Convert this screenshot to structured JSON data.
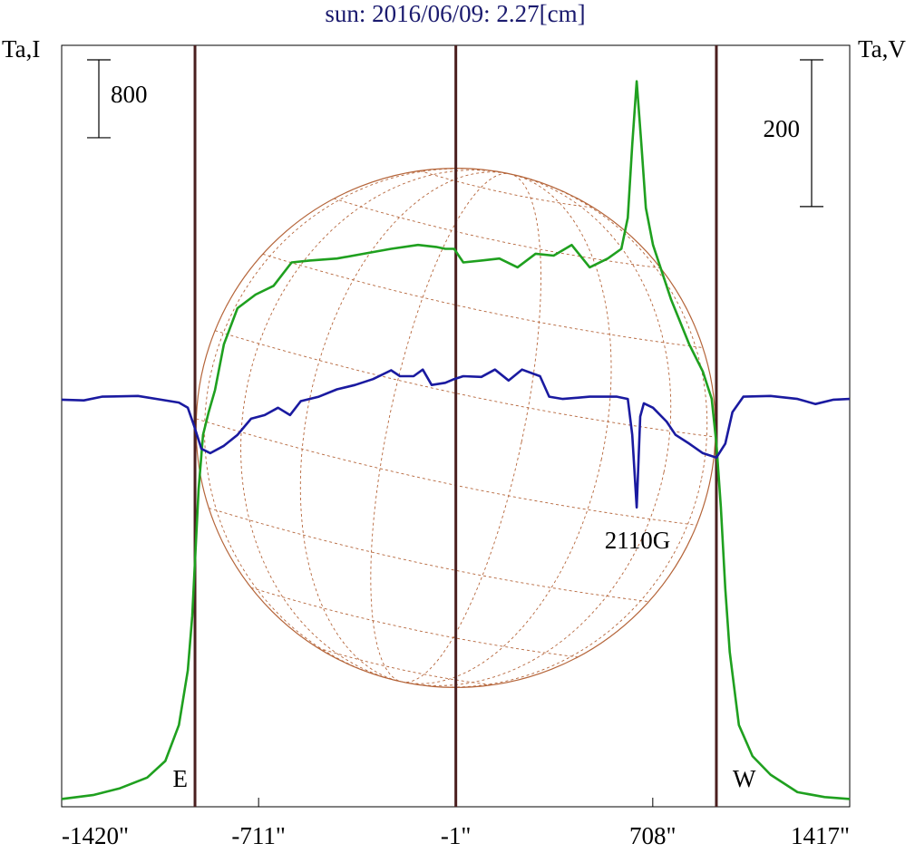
{
  "chart_data": {
    "type": "line",
    "title": "sun: 2016/06/09: 2.27[cm]",
    "y_label": "Ta,I",
    "y2_label": "Ta,V",
    "xlim": [
      -1420,
      1417
    ],
    "xticks": [
      {
        "value": -1420,
        "label": "-1420\""
      },
      {
        "value": -711,
        "label": "-711\""
      },
      {
        "value": -1,
        "label": "-1\""
      },
      {
        "value": 708,
        "label": "708\""
      },
      {
        "value": 1417,
        "label": "1417\""
      }
    ],
    "ylim": [
      -80,
      7740
    ],
    "y2lim": [
      -555,
      483
    ],
    "scale_bars": [
      {
        "value": 800,
        "axis": "y"
      },
      {
        "value": 200,
        "axis": "y2"
      }
    ],
    "markers": [
      {
        "label": "E",
        "x": -940
      },
      {
        "label": "W",
        "x": 937
      }
    ],
    "center_line": -1,
    "disk": {
      "center_x": -1,
      "radius": 935,
      "color": "#b5653a"
    },
    "annotations": [
      {
        "text": "2110G"
      }
    ],
    "series": [
      {
        "color": "#1fa01f",
        "x": [
          -1420,
          -1307,
          -1210,
          -1112,
          -1047,
          -998,
          -966,
          -950,
          -940,
          -927,
          -911,
          -891,
          -868,
          -836,
          -787,
          -722,
          -657,
          -592,
          -527,
          -429,
          -332,
          -234,
          -137,
          -72,
          -39,
          -7,
          26,
          91,
          156,
          221,
          286,
          351,
          416,
          481,
          546,
          595,
          618,
          634,
          650,
          667,
          683,
          709,
          774,
          839,
          888,
          920,
          937,
          953,
          969,
          985,
          1018,
          1067,
          1132,
          1229,
          1327,
          1417
        ],
        "values": [
          0,
          40,
          110,
          220,
          390,
          760,
          1320,
          1880,
          2440,
          3180,
          3740,
          3970,
          4200,
          4670,
          5040,
          5180,
          5270,
          5510,
          5530,
          5550,
          5600,
          5650,
          5690,
          5670,
          5650,
          5650,
          5510,
          5530,
          5550,
          5460,
          5600,
          5580,
          5690,
          5460,
          5550,
          5650,
          5970,
          6720,
          7370,
          6720,
          6070,
          5690,
          5130,
          4670,
          4390,
          4110,
          3650,
          3000,
          2160,
          1510,
          760,
          440,
          250,
          70,
          20,
          0
        ]
      },
      {
        "color": "#1a1aa0",
        "axis": "y2",
        "x": [
          -1420,
          -1340,
          -1275,
          -1145,
          -1063,
          -998,
          -966,
          -943,
          -917,
          -885,
          -836,
          -787,
          -738,
          -689,
          -641,
          -598,
          -559,
          -494,
          -429,
          -364,
          -299,
          -234,
          -202,
          -153,
          -120,
          -88,
          -39,
          -7,
          26,
          91,
          140,
          189,
          237,
          302,
          335,
          384,
          481,
          579,
          618,
          634,
          650,
          663,
          676,
          709,
          758,
          790,
          839,
          888,
          937,
          969,
          995,
          1034,
          1132,
          1229,
          1294,
          1359,
          1417
        ],
        "values": [
          0,
          -1,
          4,
          5,
          0,
          -4,
          -11,
          -36,
          -67,
          -73,
          -63,
          -48,
          -26,
          -21,
          -11,
          -21,
          -2,
          4,
          14,
          20,
          28,
          40,
          32,
          32,
          41,
          20,
          23,
          28,
          32,
          31,
          41,
          26,
          41,
          32,
          4,
          1,
          4,
          4,
          1,
          -48,
          -147,
          -23,
          -5,
          -11,
          -30,
          -48,
          -60,
          -73,
          -79,
          -60,
          -17,
          4,
          5,
          1,
          -6,
          0,
          1
        ]
      }
    ]
  }
}
